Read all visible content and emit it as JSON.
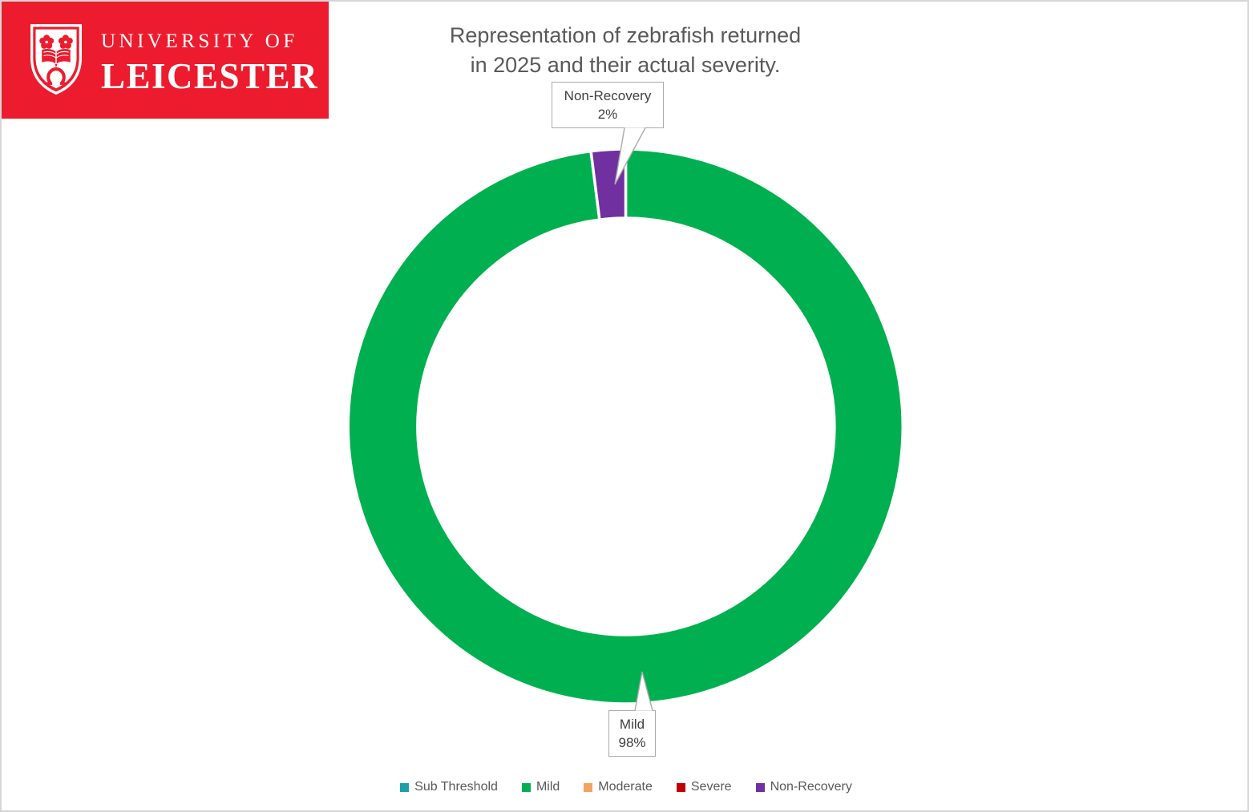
{
  "banner": {
    "university_line1": "UNIVERSITY OF",
    "university_line2": "LEICESTER",
    "bg_color": "#EC1C2E"
  },
  "chart_data": {
    "type": "pie",
    "subtype": "doughnut",
    "title": "Representation of zebrafish returned in 2025 and their actual severity.",
    "title_lines": [
      "Representation of zebrafish returned",
      "in 2025 and their actual severity."
    ],
    "categories": [
      "Sub Threshold",
      "Mild",
      "Moderate",
      "Severe",
      "Non-Recovery"
    ],
    "values": [
      0,
      98,
      0,
      0,
      2
    ],
    "unit": "%",
    "colors": [
      "#1E9EA7",
      "#00B050",
      "#F3A361",
      "#C00000",
      "#7030A0"
    ],
    "hole_ratio": 0.75,
    "start_angle_deg": 0,
    "direction": "clockwise",
    "grid": false,
    "legend_position": "bottom",
    "data_labels": {
      "non_recovery": {
        "category": "Non-Recovery",
        "percent": "2%"
      },
      "mild": {
        "category": "Mild",
        "percent": "98%"
      }
    }
  },
  "legend": {
    "entries": [
      {
        "label": "Sub Threshold",
        "color": "#1E9EA7"
      },
      {
        "label": "Mild",
        "color": "#00B050"
      },
      {
        "label": "Moderate",
        "color": "#F3A361"
      },
      {
        "label": "Severe",
        "color": "#C00000"
      },
      {
        "label": "Non-Recovery",
        "color": "#7030A0"
      }
    ]
  }
}
